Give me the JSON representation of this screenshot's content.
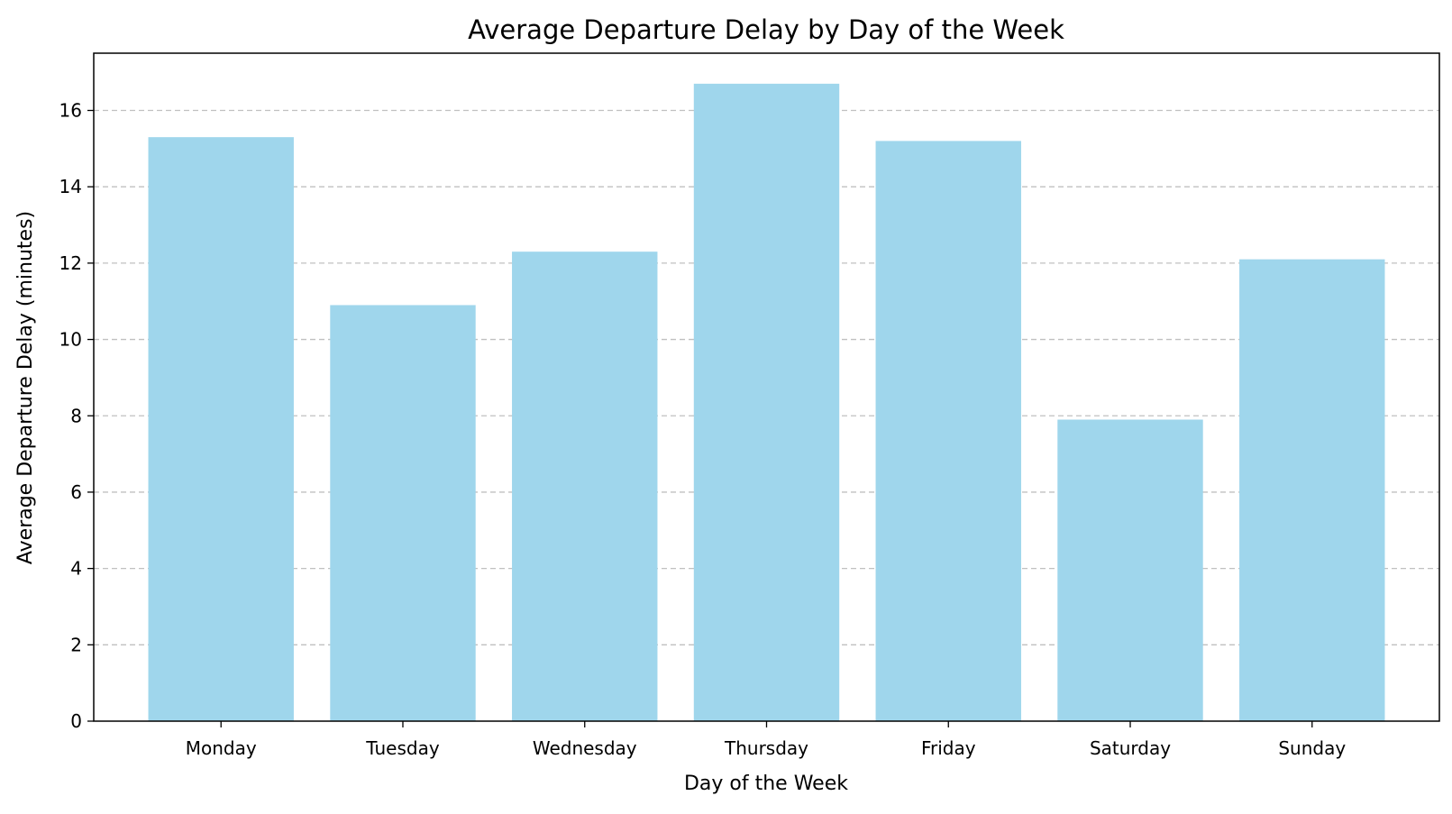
{
  "chart_data": {
    "type": "bar",
    "title": "Average Departure Delay by Day of the Week",
    "xlabel": "Day of the Week",
    "ylabel": "Average Departure Delay (minutes)",
    "categories": [
      "Monday",
      "Tuesday",
      "Wednesday",
      "Thursday",
      "Friday",
      "Saturday",
      "Sunday"
    ],
    "values": [
      15.3,
      10.9,
      12.3,
      16.7,
      15.2,
      7.9,
      12.1
    ],
    "ylim": [
      0,
      17.5
    ],
    "yticks": [
      0,
      2,
      4,
      6,
      8,
      10,
      12,
      14,
      16
    ],
    "ytick_labels": [
      "0",
      "2",
      "4",
      "6",
      "8",
      "10",
      "12",
      "14",
      "16"
    ],
    "grid": "y-axis dashed",
    "legend": "none",
    "colors": {
      "bar": "#9fd6ec",
      "grid": "#c0c0c0",
      "axis": "#000000"
    }
  }
}
